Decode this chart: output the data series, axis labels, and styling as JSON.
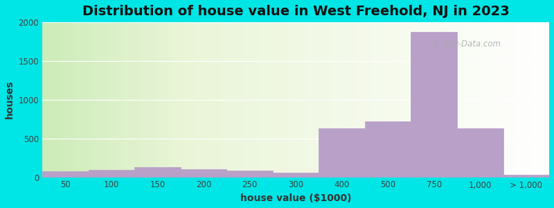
{
  "title": "Distribution of house value in West Freehold, NJ in 2023",
  "xlabel": "house value ($1000)",
  "ylabel": "houses",
  "xtick_labels": [
    "50",
    "100",
    "150",
    "200",
    "250",
    "300",
    "400",
    "500",
    "750",
    "1,000",
    "> 1,000"
  ],
  "bar_values": [
    75,
    95,
    130,
    100,
    85,
    55,
    635,
    720,
    1870,
    635,
    30
  ],
  "bar_color": "#b8a0c8",
  "bar_edgecolor": "#ffffff",
  "background_color": "#00e5e5",
  "ylim": [
    0,
    2000
  ],
  "yticks": [
    0,
    500,
    1000,
    1500,
    2000
  ],
  "grid_color": "#ffffff",
  "title_fontsize": 14,
  "axis_label_fontsize": 10,
  "tick_fontsize": 8.5,
  "watermark_text": "City-Data.com",
  "watermark_icon": "◔"
}
